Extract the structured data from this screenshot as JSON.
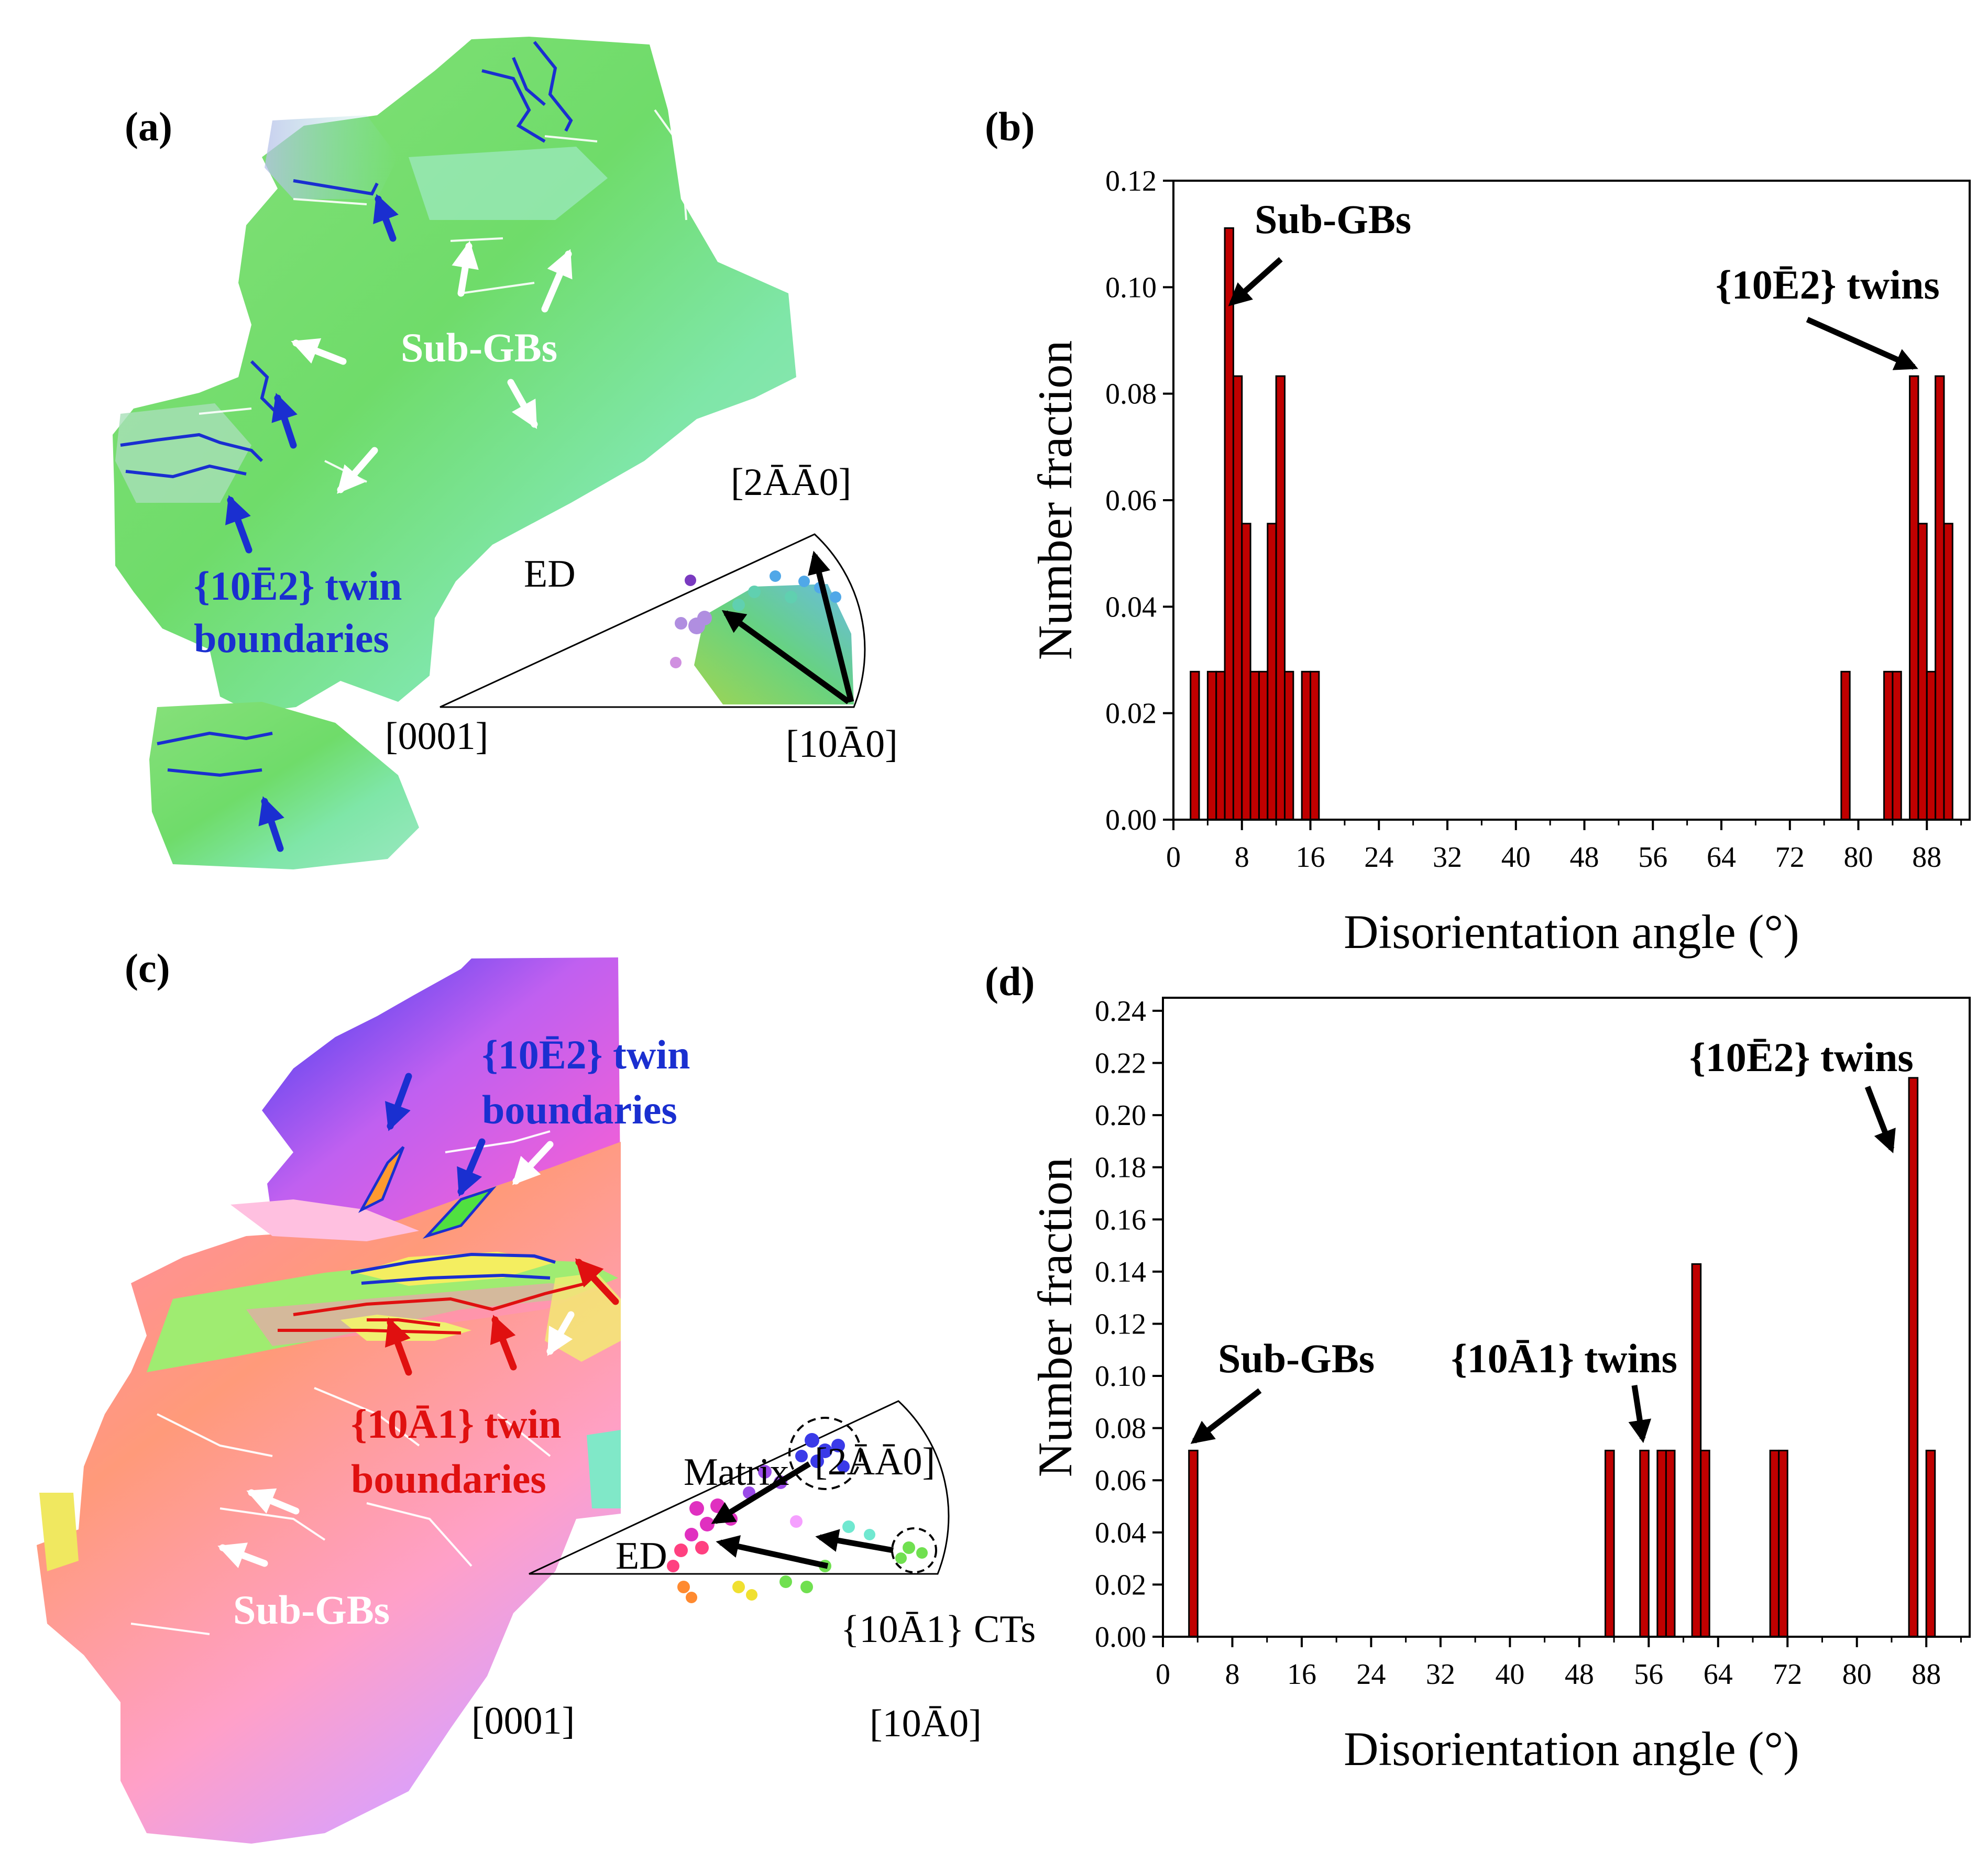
{
  "panels": {
    "a": {
      "label": "(a)",
      "subgb_label": "Sub-GBs",
      "twin_line1": "{10Ē2} twin",
      "twin_line2": "boundaries",
      "ipf": {
        "direction": "ED",
        "top": "[2ĀĀ0]",
        "left": "[0001]",
        "right": "[10Ā0]"
      }
    },
    "c": {
      "label": "(c)",
      "twin1012_line1": "{10Ē2} twin",
      "twin1012_line2": "boundaries",
      "twin1011_line1": "{10Ā1} twin",
      "twin1011_line2": "boundaries",
      "subgb_label": "Sub-GBs",
      "ipf": {
        "direction": "ED",
        "matrix": "Matrix",
        "cts": "{10Ā1} CTs",
        "top": "[2ĀĀ0]",
        "left": "[0001]",
        "right": "[10Ā0]"
      }
    }
  },
  "chart_data": [
    {
      "panel": "(b)",
      "type": "bar",
      "xlabel": "Disorientation angle (°)",
      "ylabel": "Number fraction",
      "xlim": [
        0,
        93
      ],
      "ylim": [
        0,
        0.12
      ],
      "xticks": [
        0,
        8,
        16,
        24,
        32,
        40,
        48,
        56,
        64,
        72,
        80,
        88
      ],
      "yticks": [
        0.0,
        0.02,
        0.04,
        0.06,
        0.08,
        0.1,
        0.12
      ],
      "bin_width": 1,
      "bars": [
        {
          "x": 2,
          "y": 0.0278
        },
        {
          "x": 4,
          "y": 0.0278
        },
        {
          "x": 5,
          "y": 0.0278
        },
        {
          "x": 6,
          "y": 0.1111
        },
        {
          "x": 7,
          "y": 0.0833
        },
        {
          "x": 8,
          "y": 0.0556
        },
        {
          "x": 9,
          "y": 0.0278
        },
        {
          "x": 10,
          "y": 0.0278
        },
        {
          "x": 11,
          "y": 0.0556
        },
        {
          "x": 12,
          "y": 0.0833
        },
        {
          "x": 13,
          "y": 0.0278
        },
        {
          "x": 15,
          "y": 0.0278
        },
        {
          "x": 16,
          "y": 0.0278
        },
        {
          "x": 78,
          "y": 0.0278
        },
        {
          "x": 83,
          "y": 0.0278
        },
        {
          "x": 84,
          "y": 0.0278
        },
        {
          "x": 86,
          "y": 0.0833
        },
        {
          "x": 87,
          "y": 0.0556
        },
        {
          "x": 88,
          "y": 0.0278
        },
        {
          "x": 89,
          "y": 0.0833
        },
        {
          "x": 90,
          "y": 0.0556
        }
      ],
      "annotations": [
        {
          "text": "Sub-GBs",
          "target_x": 6.8,
          "target_y": 0.097
        },
        {
          "text": "{10Ē2} twins",
          "target_x": 86.5,
          "target_y": 0.085
        }
      ],
      "bar_color": "#c00000"
    },
    {
      "panel": "(d)",
      "type": "bar",
      "xlabel": "Disorientation angle (°)",
      "ylabel": "Number fraction",
      "xlim": [
        0,
        93
      ],
      "ylim": [
        0,
        0.245
      ],
      "xticks": [
        0,
        8,
        16,
        24,
        32,
        40,
        48,
        56,
        64,
        72,
        80,
        88
      ],
      "yticks": [
        0.0,
        0.02,
        0.04,
        0.06,
        0.08,
        0.1,
        0.12,
        0.14,
        0.16,
        0.18,
        0.2,
        0.22,
        0.24
      ],
      "bin_width": 1,
      "bars": [
        {
          "x": 3,
          "y": 0.0714
        },
        {
          "x": 51,
          "y": 0.0714
        },
        {
          "x": 55,
          "y": 0.0714
        },
        {
          "x": 57,
          "y": 0.0714
        },
        {
          "x": 58,
          "y": 0.0714
        },
        {
          "x": 61,
          "y": 0.1429
        },
        {
          "x": 62,
          "y": 0.0714
        },
        {
          "x": 70,
          "y": 0.0714
        },
        {
          "x": 71,
          "y": 0.0714
        },
        {
          "x": 86,
          "y": 0.2143
        },
        {
          "x": 88,
          "y": 0.0714
        }
      ],
      "annotations": [
        {
          "text": "Sub-GBs",
          "target_x": 3.6,
          "target_y": 0.075
        },
        {
          "text": "{10Ā1} twins",
          "target_x": 55.3,
          "target_y": 0.076
        },
        {
          "text": "{10Ē2} twins",
          "target_x": 84.0,
          "target_y": 0.187
        }
      ],
      "bar_color": "#c00000"
    }
  ]
}
